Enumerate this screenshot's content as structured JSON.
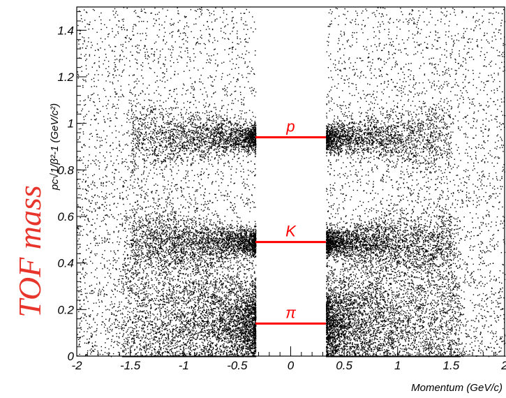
{
  "chart_data": {
    "type": "heatmap",
    "title": "",
    "overlay_label": "TOF mass",
    "xlabel": "Momentum (GeV/c)",
    "ylabel": "pc√1/β²-1  (GeV/c²)",
    "xlim": [
      -2,
      2
    ],
    "ylim": [
      0,
      1.5
    ],
    "x_ticks": [
      -2,
      -1.5,
      -1,
      -0.5,
      0,
      0.5,
      1,
      1.5,
      2
    ],
    "x_tick_labels": [
      "-2",
      "-1.5",
      "-1",
      "-0.5",
      "0",
      "0.5",
      "1",
      "1.5",
      "2"
    ],
    "y_ticks": [
      0,
      0.2,
      0.4,
      0.6,
      0.8,
      1,
      1.2,
      1.4
    ],
    "y_tick_labels": [
      "0",
      "0.2",
      "0.4",
      "0.6",
      "0.8",
      "1",
      "1.2",
      "1.4"
    ],
    "excluded_x_range": [
      -0.33,
      0.33
    ],
    "bands": [
      {
        "name": "pion",
        "label": "π",
        "mass": 0.14,
        "intensity": 1.0
      },
      {
        "name": "kaon",
        "label": "K",
        "mass": 0.49,
        "intensity": 0.55
      },
      {
        "name": "proton",
        "label": "p",
        "mass": 0.94,
        "intensity": 0.45
      }
    ],
    "marker_line_x": [
      -0.33,
      0.33
    ],
    "grid": false,
    "colors": {
      "points": "#000000",
      "markers": "#ff0000",
      "overlay": "#e8352b"
    }
  }
}
